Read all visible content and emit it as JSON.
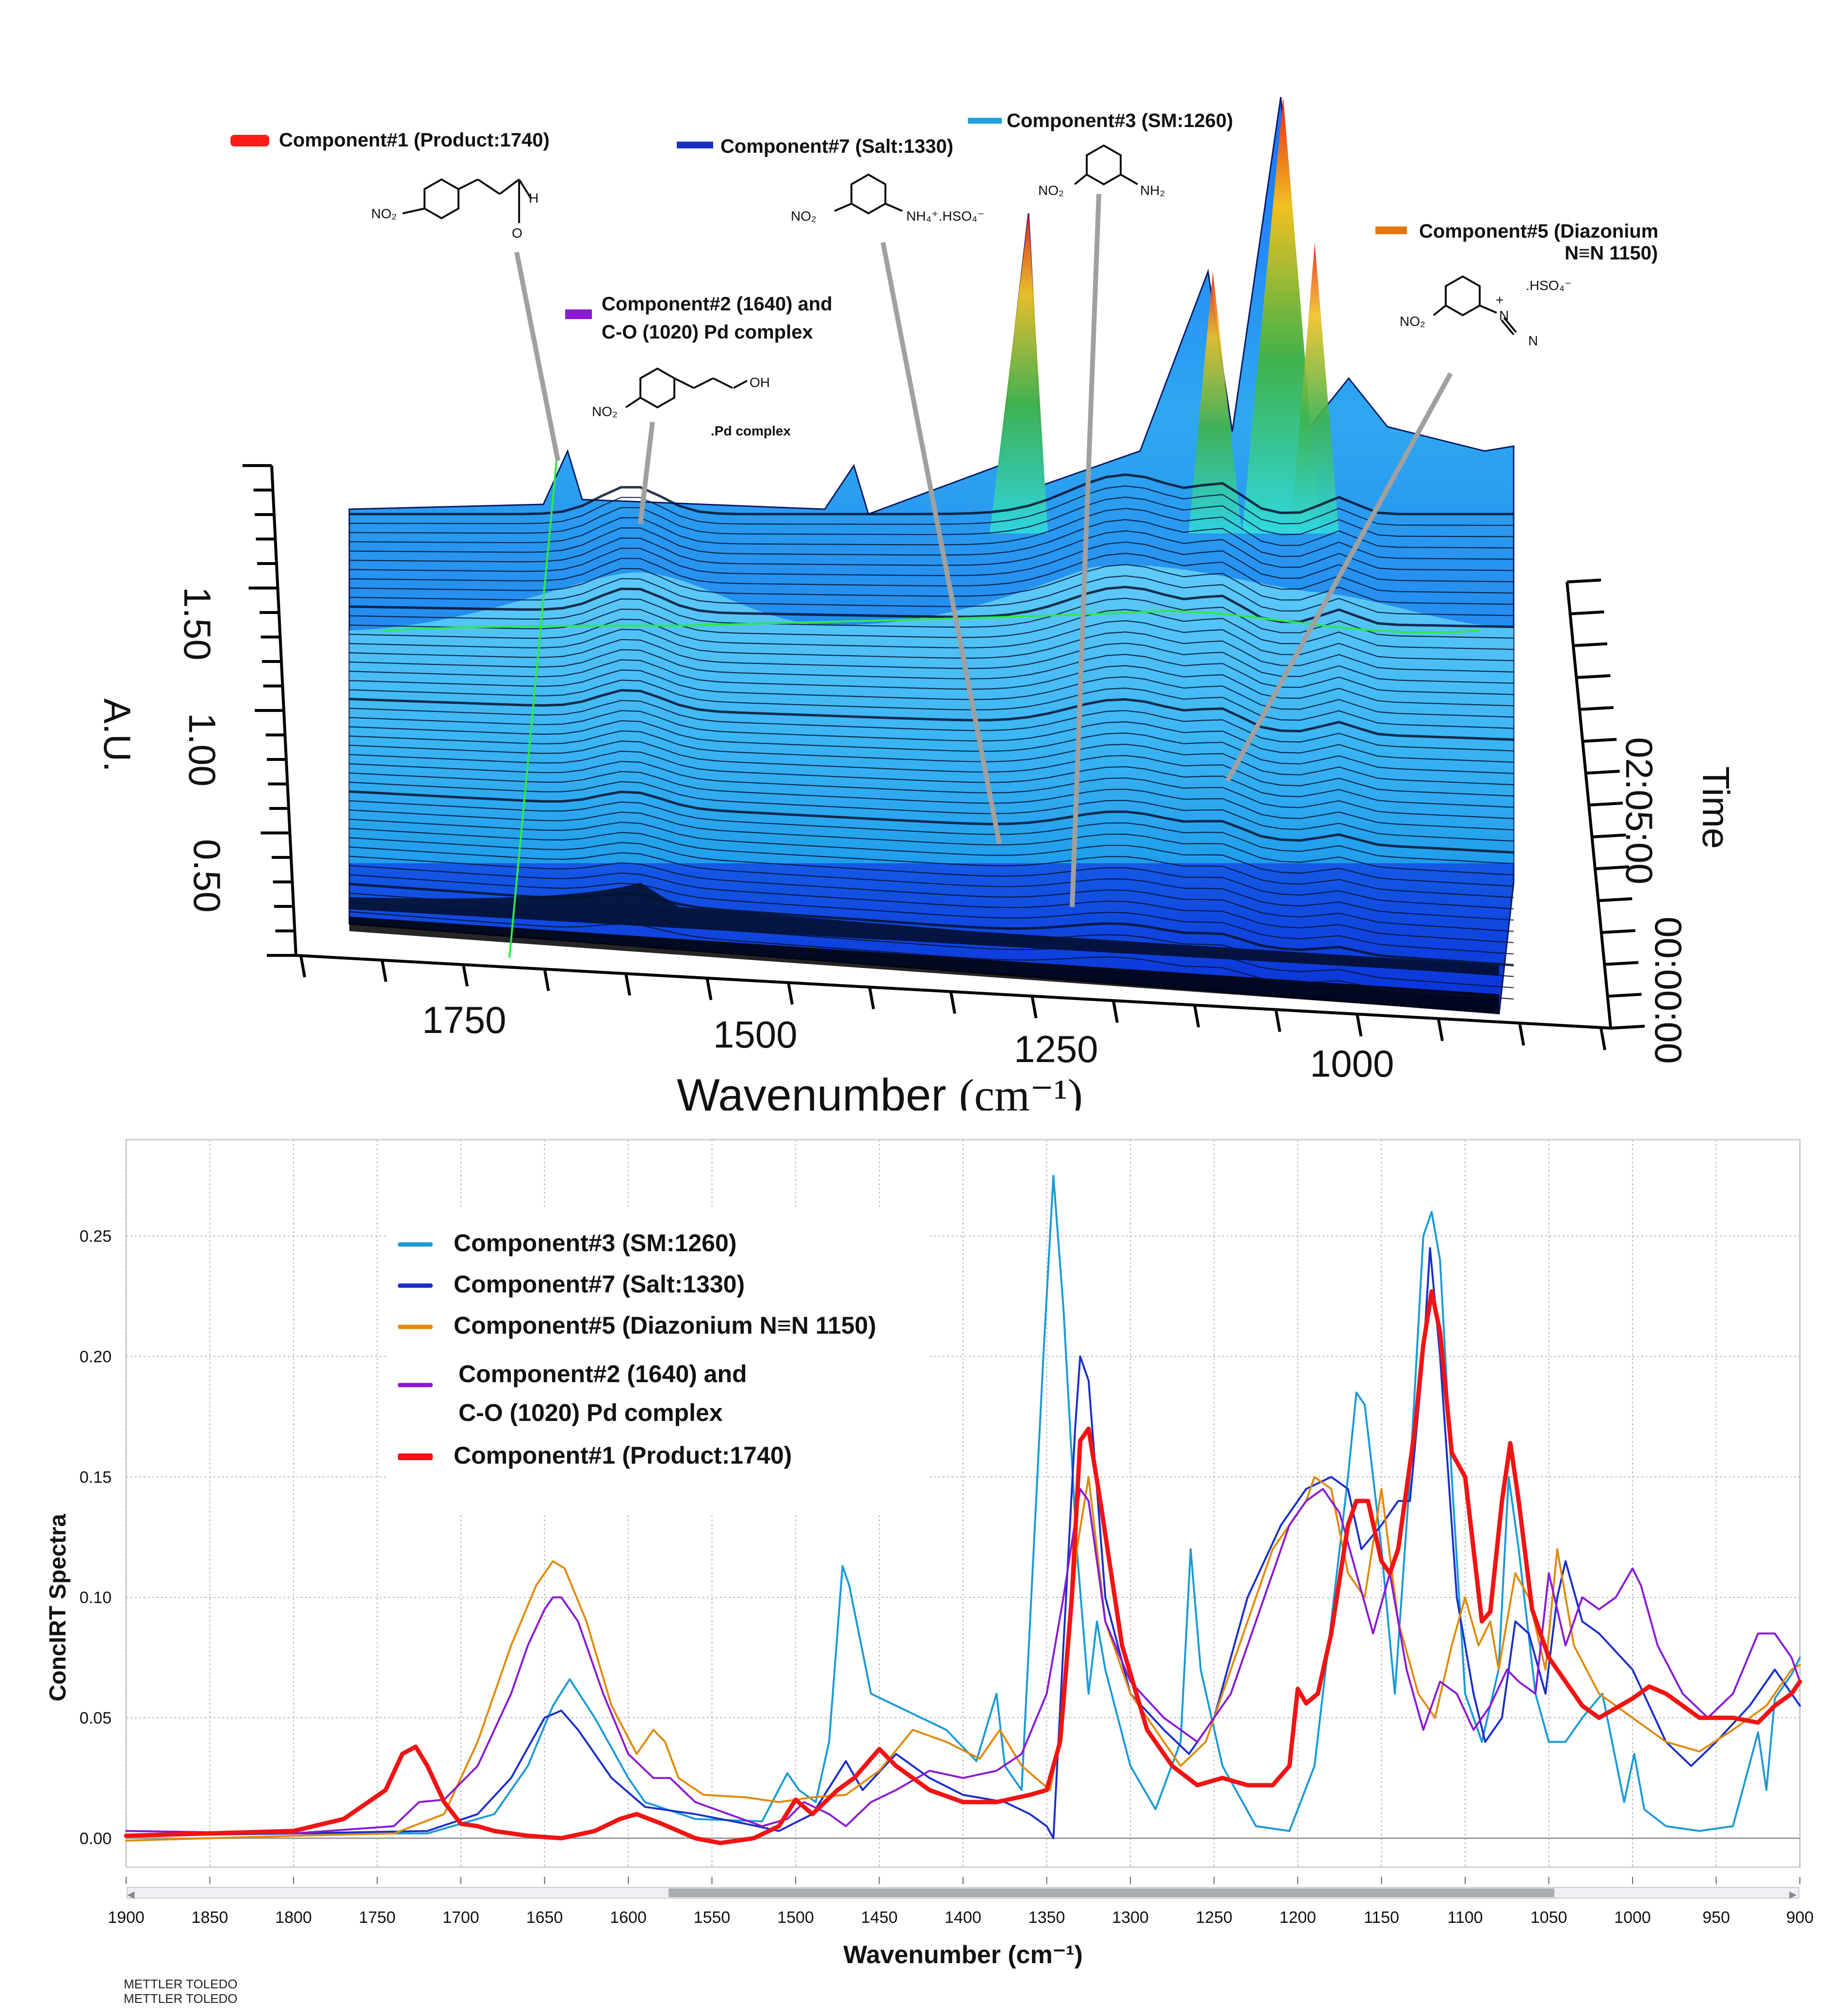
{
  "top_chart": {
    "type": "3d-waterfall",
    "z_axis_label": "A.U.",
    "z_ticks": [
      "1.50",
      "1.00",
      "0.50"
    ],
    "x_axis_label": "Wavenumber",
    "x_axis_unit": "(cm⁻¹)",
    "x_ticks": [
      "1750",
      "1500",
      "1250",
      "1000"
    ],
    "time_axis_label": "Time",
    "time_ticks": [
      "02:05:00",
      "00:00:00"
    ],
    "legend": [
      {
        "label": "Component#1 (Product:1740)",
        "color": "#ff1a1a",
        "structure": [
          "NO₂",
          "H",
          "O"
        ]
      },
      {
        "label": "Component#7 (Salt:1330)",
        "color": "#1a2fc8",
        "structure": [
          "NO₂",
          "NH₄⁺.HSO₄⁻"
        ]
      },
      {
        "label": "Component#3 (SM:1260)",
        "color": "#1e9fe0",
        "structure": [
          "NO₂",
          "NH₂"
        ]
      },
      {
        "label": "Component#5 (Diazonium",
        "label_line2": "N≡N 1150)",
        "color": "#e07a10",
        "structure": [
          ".HSO₄⁻",
          "+",
          "NO₂",
          "N",
          "N"
        ]
      },
      {
        "label": "Component#2 (1640) and",
        "label_line2": "C-O (1020) Pd complex",
        "color": "#8a1ad6",
        "structure": [
          "NO₂",
          "OH",
          ".Pd complex"
        ]
      }
    ]
  },
  "chart_data": {
    "type": "line",
    "title": "",
    "xlabel": "Wavenumber (cm⁻¹)",
    "ylabel": "ConcIRT Spectra",
    "xlim": [
      1900,
      900
    ],
    "ylim": [
      -0.012,
      0.29
    ],
    "x_ticks": [
      "1900",
      "1850",
      "1800",
      "1750",
      "1700",
      "1650",
      "1600",
      "1550",
      "1500",
      "1450",
      "1400",
      "1350",
      "1300",
      "1250",
      "1200",
      "1150",
      "1100",
      "1050",
      "1000",
      "950",
      "900"
    ],
    "y_ticks": [
      "0.00",
      "0.05",
      "0.10",
      "0.15",
      "0.20",
      "0.25"
    ],
    "grid": true,
    "legend_position": "upper-left",
    "series": [
      {
        "name": "Component#3 (SM:1260)",
        "color": "#1a9ad6",
        "width": 4,
        "x": [
          1900,
          1800,
          1720,
          1680,
          1660,
          1645,
          1635,
          1620,
          1600,
          1590,
          1560,
          1520,
          1505,
          1498,
          1488,
          1480,
          1472,
          1468,
          1455,
          1440,
          1410,
          1392,
          1380,
          1375,
          1365,
          1352,
          1346,
          1340,
          1332,
          1325,
          1320,
          1315,
          1300,
          1285,
          1270,
          1264,
          1258,
          1245,
          1225,
          1205,
          1190,
          1180,
          1170,
          1165,
          1160,
          1150,
          1142,
          1133,
          1125,
          1120,
          1115,
          1108,
          1100,
          1090,
          1080,
          1074,
          1068,
          1058,
          1050,
          1040,
          1030,
          1018,
          1005,
          999,
          993,
          980,
          960,
          940,
          925,
          920,
          915,
          905,
          900
        ],
        "y": [
          0.001,
          0.002,
          0.002,
          0.01,
          0.03,
          0.055,
          0.066,
          0.05,
          0.025,
          0.015,
          0.008,
          0.007,
          0.027,
          0.02,
          0.015,
          0.04,
          0.113,
          0.105,
          0.06,
          0.055,
          0.045,
          0.032,
          0.06,
          0.03,
          0.02,
          0.2,
          0.275,
          0.22,
          0.12,
          0.06,
          0.09,
          0.07,
          0.03,
          0.012,
          0.04,
          0.12,
          0.07,
          0.03,
          0.005,
          0.003,
          0.03,
          0.09,
          0.15,
          0.185,
          0.18,
          0.12,
          0.06,
          0.15,
          0.25,
          0.26,
          0.24,
          0.15,
          0.06,
          0.04,
          0.07,
          0.15,
          0.12,
          0.06,
          0.04,
          0.04,
          0.05,
          0.06,
          0.015,
          0.035,
          0.012,
          0.005,
          0.003,
          0.005,
          0.044,
          0.02,
          0.058,
          0.068,
          0.075
        ]
      },
      {
        "name": "Component#7 (Salt:1330)",
        "color": "#1a2fc8",
        "width": 4,
        "x": [
          1900,
          1800,
          1720,
          1690,
          1670,
          1650,
          1640,
          1630,
          1610,
          1590,
          1560,
          1530,
          1510,
          1490,
          1470,
          1460,
          1440,
          1420,
          1400,
          1375,
          1360,
          1350,
          1346,
          1340,
          1333,
          1330,
          1325,
          1315,
          1300,
          1280,
          1265,
          1250,
          1230,
          1210,
          1195,
          1180,
          1170,
          1162,
          1150,
          1140,
          1133,
          1125,
          1121,
          1115,
          1105,
          1095,
          1088,
          1078,
          1070,
          1062,
          1052,
          1045,
          1040,
          1030,
          1020,
          1000,
          980,
          965,
          950,
          930,
          915,
          905,
          900
        ],
        "y": [
          0.001,
          0.002,
          0.003,
          0.01,
          0.025,
          0.05,
          0.053,
          0.045,
          0.025,
          0.013,
          0.01,
          0.006,
          0.003,
          0.01,
          0.032,
          0.02,
          0.035,
          0.025,
          0.018,
          0.015,
          0.01,
          0.005,
          0.0,
          0.08,
          0.17,
          0.2,
          0.19,
          0.1,
          0.06,
          0.045,
          0.035,
          0.05,
          0.1,
          0.13,
          0.145,
          0.15,
          0.145,
          0.12,
          0.13,
          0.14,
          0.14,
          0.2,
          0.245,
          0.2,
          0.1,
          0.06,
          0.04,
          0.05,
          0.09,
          0.085,
          0.06,
          0.1,
          0.115,
          0.09,
          0.085,
          0.07,
          0.04,
          0.03,
          0.04,
          0.055,
          0.07,
          0.06,
          0.055
        ]
      },
      {
        "name": "Component#5 (Diazonium N≡N 1150)",
        "color": "#e08a0a",
        "width": 4,
        "x": [
          1900,
          1800,
          1740,
          1710,
          1690,
          1670,
          1655,
          1645,
          1638,
          1625,
          1610,
          1595,
          1585,
          1578,
          1570,
          1555,
          1530,
          1510,
          1490,
          1470,
          1450,
          1430,
          1410,
          1390,
          1378,
          1365,
          1348,
          1340,
          1332,
          1325,
          1315,
          1300,
          1285,
          1270,
          1255,
          1235,
          1215,
          1195,
          1190,
          1180,
          1170,
          1160,
          1150,
          1140,
          1128,
          1118,
          1108,
          1100,
          1092,
          1085,
          1080,
          1070,
          1062,
          1052,
          1045,
          1035,
          1020,
          1000,
          980,
          960,
          940,
          920,
          905,
          900
        ],
        "y": [
          -0.001,
          0.001,
          0.002,
          0.01,
          0.04,
          0.08,
          0.105,
          0.115,
          0.112,
          0.09,
          0.055,
          0.035,
          0.045,
          0.04,
          0.025,
          0.018,
          0.017,
          0.015,
          0.017,
          0.018,
          0.028,
          0.045,
          0.04,
          0.033,
          0.045,
          0.03,
          0.02,
          0.05,
          0.12,
          0.15,
          0.09,
          0.06,
          0.045,
          0.03,
          0.04,
          0.08,
          0.12,
          0.14,
          0.15,
          0.145,
          0.11,
          0.1,
          0.145,
          0.09,
          0.06,
          0.05,
          0.08,
          0.1,
          0.08,
          0.09,
          0.07,
          0.11,
          0.1,
          0.07,
          0.12,
          0.08,
          0.06,
          0.05,
          0.04,
          0.036,
          0.045,
          0.055,
          0.07,
          0.072
        ]
      },
      {
        "name": "Component#2 (1640) and C-O (1020) Pd complex",
        "color": "#8a1ad6",
        "width": 4,
        "x": [
          1900,
          1800,
          1740,
          1725,
          1710,
          1690,
          1670,
          1660,
          1650,
          1645,
          1640,
          1630,
          1615,
          1600,
          1585,
          1575,
          1560,
          1540,
          1520,
          1505,
          1495,
          1480,
          1470,
          1455,
          1440,
          1420,
          1400,
          1380,
          1365,
          1350,
          1340,
          1330,
          1325,
          1315,
          1300,
          1280,
          1260,
          1240,
          1220,
          1205,
          1195,
          1185,
          1175,
          1165,
          1155,
          1145,
          1135,
          1125,
          1115,
          1105,
          1095,
          1085,
          1075,
          1068,
          1058,
          1050,
          1040,
          1030,
          1020,
          1010,
          1000,
          995,
          985,
          970,
          955,
          940,
          925,
          915,
          905,
          900
        ],
        "y": [
          0.003,
          0.002,
          0.005,
          0.015,
          0.016,
          0.03,
          0.06,
          0.08,
          0.095,
          0.1,
          0.1,
          0.09,
          0.06,
          0.035,
          0.025,
          0.025,
          0.015,
          0.01,
          0.005,
          0.008,
          0.015,
          0.01,
          0.005,
          0.015,
          0.02,
          0.028,
          0.025,
          0.028,
          0.035,
          0.06,
          0.1,
          0.145,
          0.14,
          0.09,
          0.065,
          0.05,
          0.04,
          0.06,
          0.1,
          0.13,
          0.14,
          0.145,
          0.135,
          0.11,
          0.085,
          0.11,
          0.07,
          0.045,
          0.065,
          0.06,
          0.045,
          0.055,
          0.07,
          0.065,
          0.06,
          0.11,
          0.08,
          0.1,
          0.095,
          0.1,
          0.112,
          0.105,
          0.08,
          0.06,
          0.05,
          0.06,
          0.085,
          0.085,
          0.075,
          0.065
        ]
      },
      {
        "name": "Component#1 (Product:1740)",
        "color": "#f01414",
        "width": 9,
        "x": [
          1900,
          1800,
          1770,
          1745,
          1735,
          1727,
          1720,
          1710,
          1700,
          1690,
          1680,
          1660,
          1640,
          1620,
          1605,
          1595,
          1580,
          1560,
          1545,
          1525,
          1510,
          1500,
          1490,
          1475,
          1465,
          1450,
          1440,
          1420,
          1400,
          1380,
          1360,
          1350,
          1342,
          1335,
          1330,
          1325,
          1318,
          1305,
          1290,
          1275,
          1260,
          1245,
          1230,
          1215,
          1205,
          1200,
          1195,
          1188,
          1180,
          1170,
          1165,
          1158,
          1150,
          1145,
          1140,
          1130,
          1125,
          1120,
          1115,
          1108,
          1100,
          1090,
          1085,
          1078,
          1073,
          1068,
          1060,
          1050,
          1040,
          1030,
          1020,
          1000,
          990,
          980,
          970,
          960,
          950,
          940,
          925,
          915,
          905,
          900
        ],
        "y": [
          0.001,
          0.003,
          0.008,
          0.02,
          0.035,
          0.038,
          0.03,
          0.015,
          0.006,
          0.005,
          0.003,
          0.001,
          0.0,
          0.003,
          0.008,
          0.01,
          0.006,
          0.0,
          -0.002,
          0.0,
          0.005,
          0.016,
          0.01,
          0.02,
          0.025,
          0.037,
          0.03,
          0.02,
          0.015,
          0.015,
          0.018,
          0.02,
          0.04,
          0.1,
          0.165,
          0.17,
          0.14,
          0.08,
          0.045,
          0.03,
          0.022,
          0.025,
          0.022,
          0.022,
          0.03,
          0.062,
          0.056,
          0.06,
          0.085,
          0.13,
          0.14,
          0.14,
          0.115,
          0.11,
          0.12,
          0.17,
          0.205,
          0.227,
          0.21,
          0.16,
          0.15,
          0.09,
          0.094,
          0.14,
          0.164,
          0.14,
          0.095,
          0.075,
          0.065,
          0.055,
          0.05,
          0.058,
          0.063,
          0.06,
          0.055,
          0.05,
          0.05,
          0.05,
          0.048,
          0.055,
          0.06,
          0.065
        ]
      }
    ]
  },
  "footer": {
    "vendor_line1": "METTLER TOLEDO",
    "vendor_line2": "METTLER TOLEDO"
  }
}
